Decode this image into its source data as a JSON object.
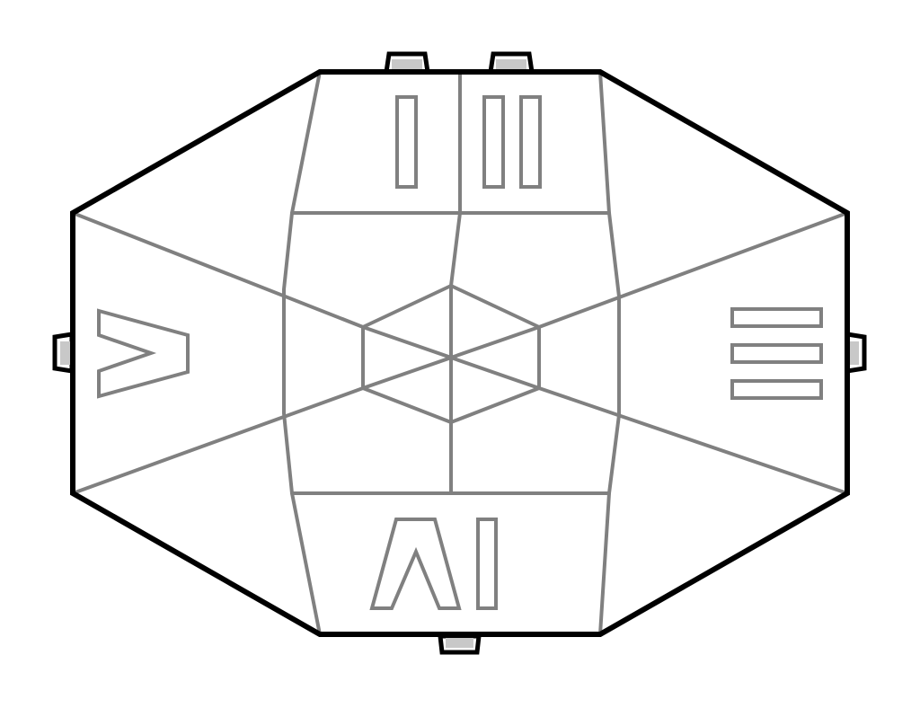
{
  "colors": {
    "outline": "#000000",
    "crease": "#808080",
    "tab_fill": "#c8c8c8",
    "background": "#ffffff"
  },
  "panels": [
    {
      "id": "top-left",
      "numeral": "I"
    },
    {
      "id": "top-right",
      "numeral": "II"
    },
    {
      "id": "right",
      "numeral": "III"
    },
    {
      "id": "bottom",
      "numeral": "IV"
    },
    {
      "id": "left",
      "numeral": "V"
    }
  ]
}
